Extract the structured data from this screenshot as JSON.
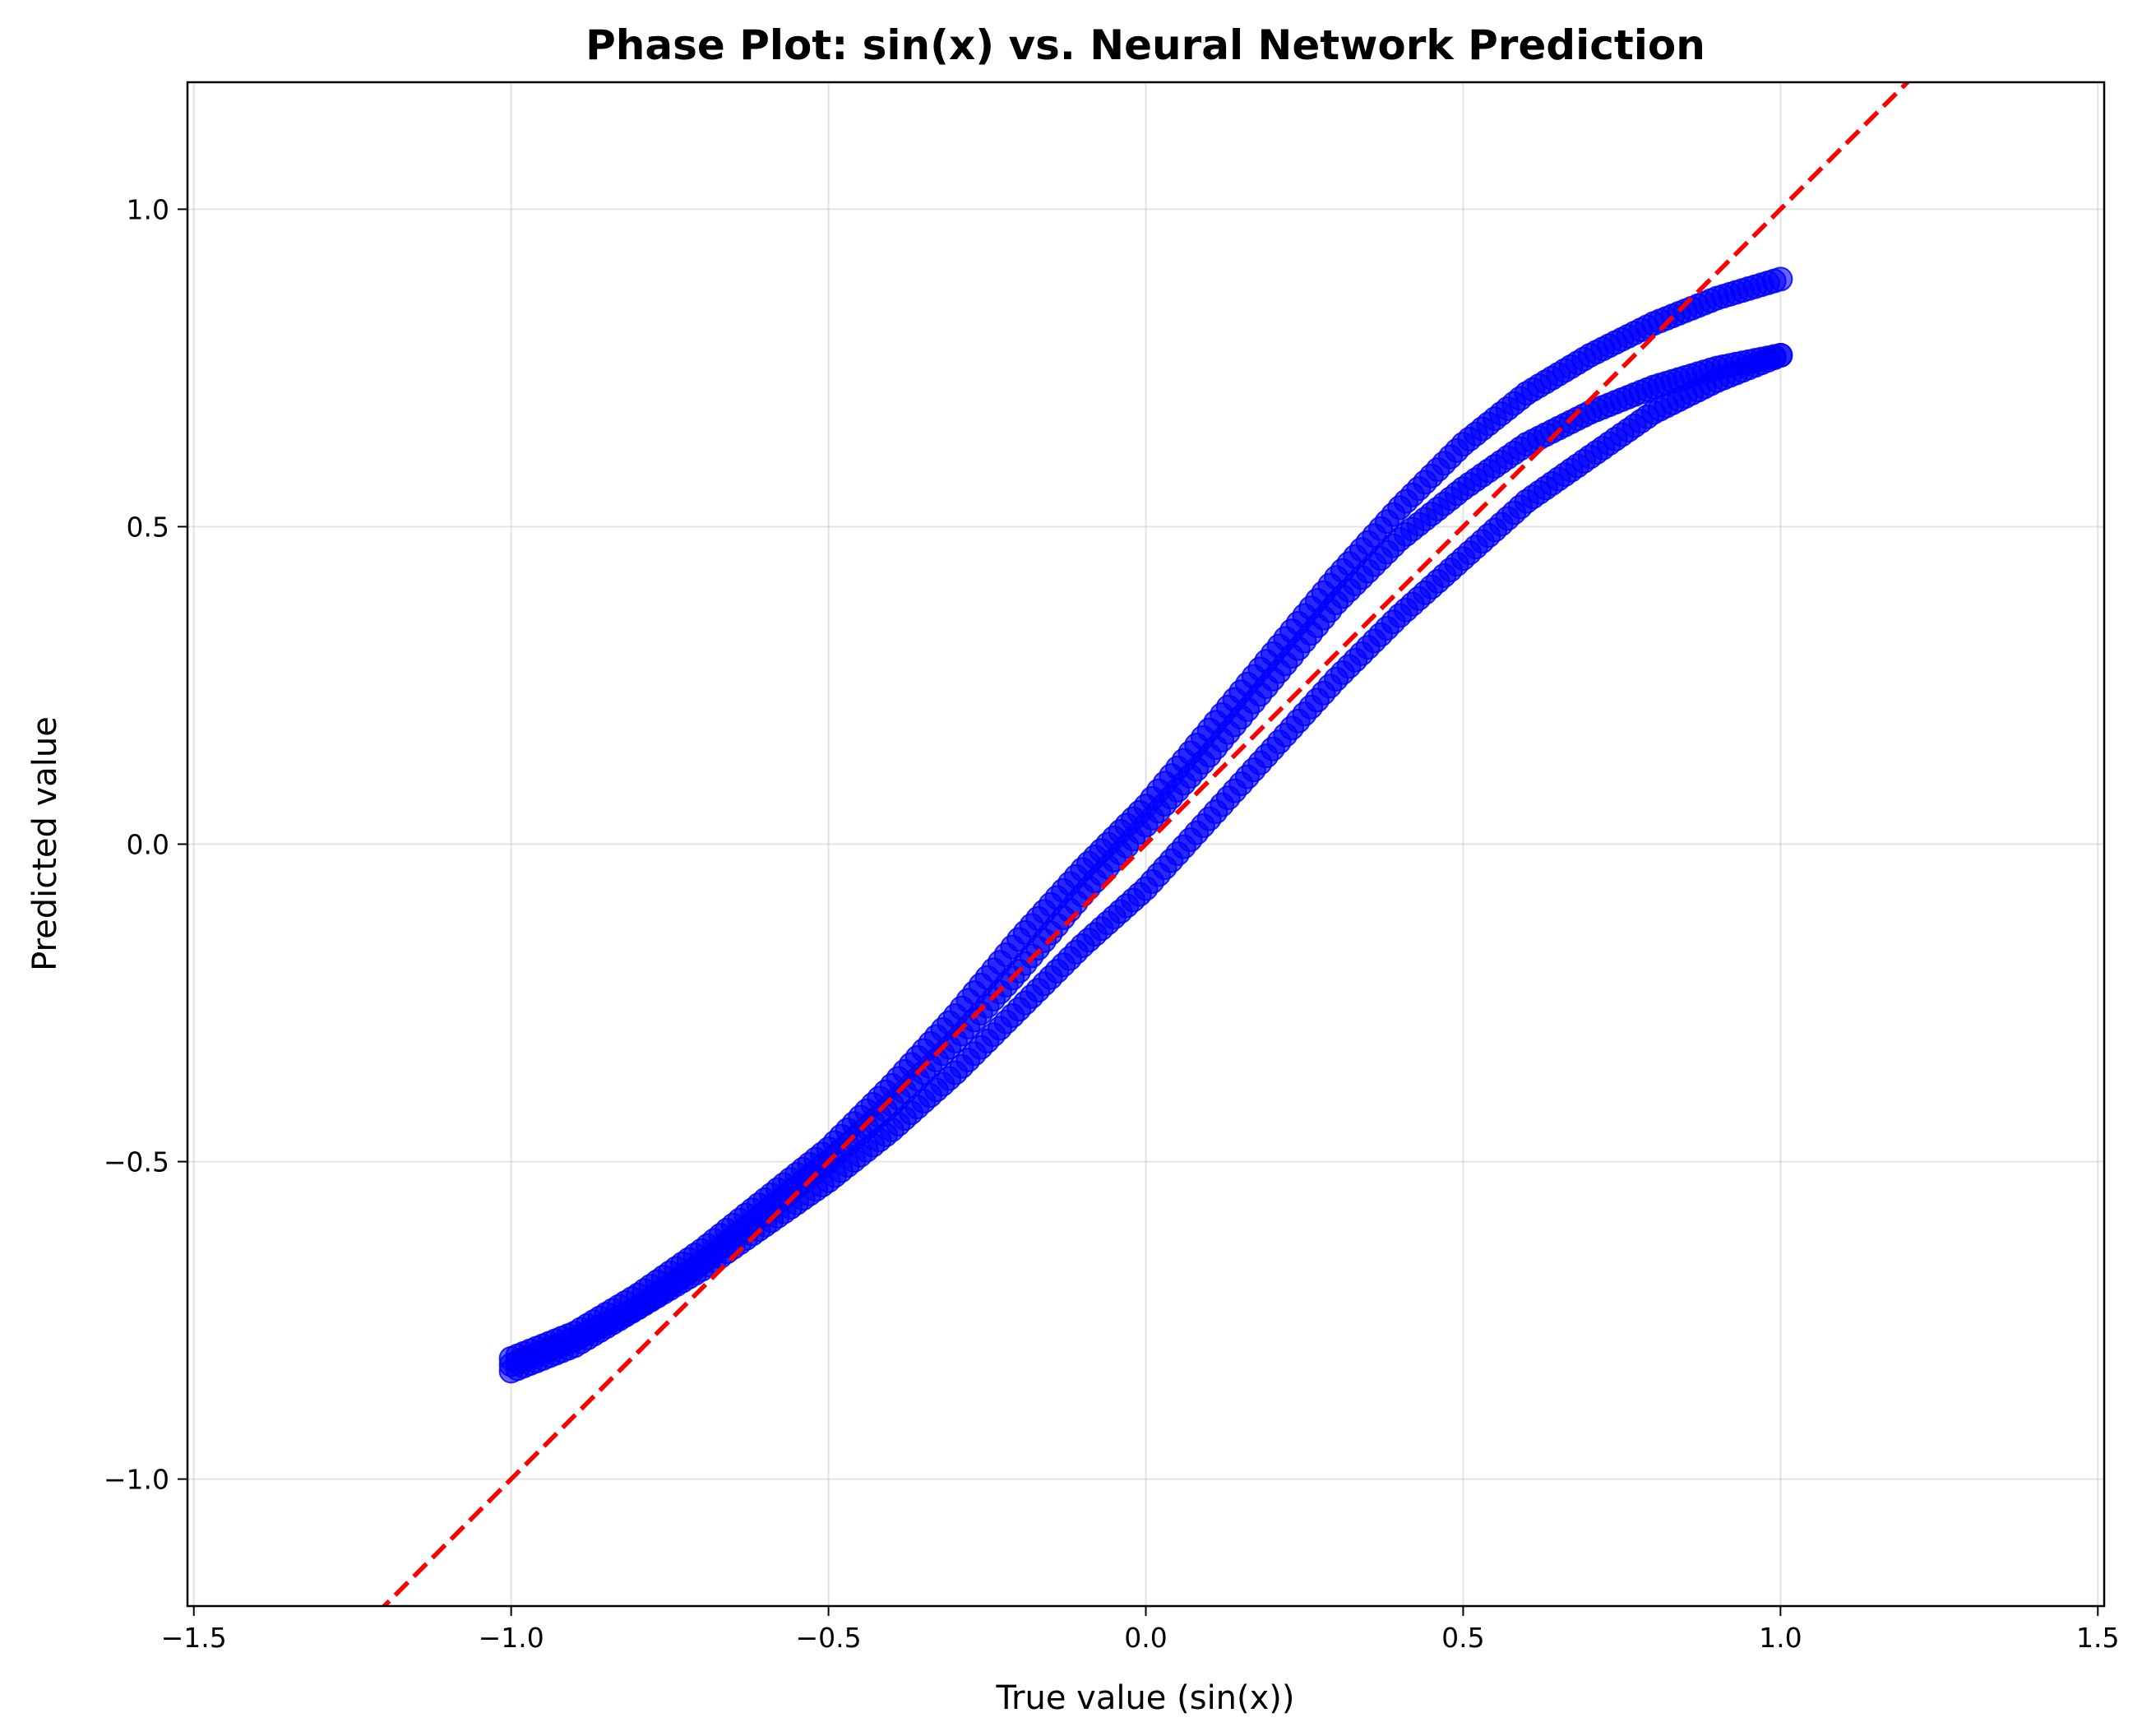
{
  "chart_data": {
    "type": "scatter",
    "title": "Phase Plot: sin(x) vs. Neural Network Prediction",
    "xlabel": "True value (sin(x))",
    "ylabel": "Predicted value",
    "xlim": [
      -1.51,
      1.51
    ],
    "ylim": [
      -1.2,
      1.2
    ],
    "xticks": [
      -1.5,
      -1.0,
      -0.5,
      0.0,
      0.5,
      1.0,
      1.5
    ],
    "xtick_labels": [
      "−1.5",
      "−1.0",
      "−0.5",
      "0.0",
      "0.5",
      "1.0",
      "1.5"
    ],
    "yticks": [
      -1.0,
      -0.5,
      0.0,
      0.5,
      1.0
    ],
    "ytick_labels": [
      "−1.0",
      "−0.5",
      "0.0",
      "0.5",
      "1.0"
    ],
    "grid": true,
    "series": [
      {
        "marker": "circle",
        "color": "#0000ff",
        "alpha": 0.6,
        "branches": [
          [
            [
              -1.0,
              -0.81
            ],
            [
              -0.9,
              -0.77
            ],
            [
              -0.8,
              -0.71
            ],
            [
              -0.7,
              -0.64
            ],
            [
              -0.6,
              -0.56
            ],
            [
              -0.5,
              -0.48
            ],
            [
              -0.4,
              -0.38
            ],
            [
              -0.3,
              -0.27
            ],
            [
              -0.2,
              -0.15
            ],
            [
              -0.1,
              -0.04
            ],
            [
              0.0,
              0.06
            ],
            [
              0.1,
              0.18
            ],
            [
              0.2,
              0.3
            ],
            [
              0.3,
              0.42
            ],
            [
              0.4,
              0.53
            ],
            [
              0.5,
              0.63
            ],
            [
              0.6,
              0.71
            ],
            [
              0.7,
              0.77
            ],
            [
              0.8,
              0.82
            ],
            [
              0.9,
              0.86
            ],
            [
              1.0,
              0.89
            ]
          ],
          [
            [
              -1.0,
              -0.83
            ],
            [
              -0.9,
              -0.79
            ],
            [
              -0.8,
              -0.73
            ],
            [
              -0.7,
              -0.66
            ],
            [
              -0.6,
              -0.58
            ],
            [
              -0.5,
              -0.5
            ],
            [
              -0.4,
              -0.41
            ],
            [
              -0.3,
              -0.31
            ],
            [
              -0.2,
              -0.2
            ],
            [
              -0.1,
              -0.08
            ],
            [
              0.0,
              0.03
            ],
            [
              0.1,
              0.14
            ],
            [
              0.2,
              0.26
            ],
            [
              0.3,
              0.38
            ],
            [
              0.4,
              0.48
            ],
            [
              0.5,
              0.56
            ],
            [
              0.6,
              0.63
            ],
            [
              0.7,
              0.68
            ],
            [
              0.8,
              0.72
            ],
            [
              0.9,
              0.75
            ],
            [
              1.0,
              0.77
            ]
          ],
          [
            [
              -1.0,
              -0.82
            ],
            [
              -0.9,
              -0.78
            ],
            [
              -0.8,
              -0.73
            ],
            [
              -0.7,
              -0.67
            ],
            [
              -0.6,
              -0.6
            ],
            [
              -0.5,
              -0.53
            ],
            [
              -0.4,
              -0.45
            ],
            [
              -0.3,
              -0.36
            ],
            [
              -0.2,
              -0.26
            ],
            [
              -0.1,
              -0.16
            ],
            [
              0.0,
              -0.07
            ],
            [
              0.1,
              0.04
            ],
            [
              0.2,
              0.15
            ],
            [
              0.3,
              0.26
            ],
            [
              0.4,
              0.36
            ],
            [
              0.5,
              0.45
            ],
            [
              0.6,
              0.54
            ],
            [
              0.7,
              0.61
            ],
            [
              0.8,
              0.68
            ],
            [
              0.9,
              0.73
            ],
            [
              1.0,
              0.77
            ]
          ]
        ]
      },
      {
        "type": "line",
        "style": "dashed",
        "color": "#ff0000",
        "x": [
          -1.3,
          1.3
        ],
        "y": [
          -1.3,
          1.3
        ]
      }
    ]
  }
}
